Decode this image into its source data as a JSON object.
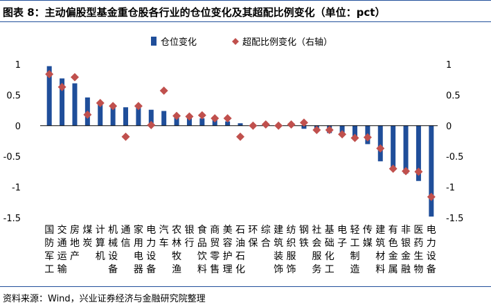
{
  "header": {
    "title": "图表 8：主动偏股型基金重仓股各行业的仓位变化及其超配比例变化（单位：pct）"
  },
  "footer": {
    "source": "资料来源：Wind，兴业证券经济与金融研究院整理"
  },
  "colors": {
    "bar": "#1f4e9a",
    "marker": "#c0504d",
    "rule": "#1f4e9a"
  },
  "chart_data": {
    "type": "bar",
    "categories": [
      "国防军工",
      "交通运输",
      "房地产",
      "煤炭",
      "计算机",
      "机械设备",
      "通信",
      "家用电器",
      "电力设备",
      "汽车",
      "农林牧渔",
      "银行",
      "食品饮料",
      "商贸零售",
      "美容护理",
      "石油石化",
      "环保",
      "综合",
      "建筑装饰",
      "纺织服饰",
      "钢铁",
      "社会服务",
      "基础化工",
      "电子",
      "轻工制造",
      "传媒",
      "建筑材料",
      "有色金属",
      "非银金融",
      "医药生物",
      "电力设备"
    ],
    "series": [
      {
        "name": "仓位变化",
        "kind": "bar",
        "axis": "left",
        "values": [
          0.97,
          0.77,
          0.69,
          0.46,
          0.38,
          0.33,
          0.3,
          0.29,
          0.26,
          0.24,
          0.17,
          0.14,
          0.12,
          0.1,
          0.07,
          0.04,
          0.02,
          0.01,
          0.01,
          -0.01,
          -0.05,
          -0.08,
          -0.12,
          -0.15,
          -0.18,
          -0.3,
          -0.58,
          -0.7,
          -0.78,
          -0.9,
          -1.48
        ]
      },
      {
        "name": "超配比例变化（右轴）",
        "kind": "marker",
        "axis": "right",
        "values": [
          0.84,
          0.63,
          0.79,
          0.18,
          0.37,
          0.32,
          -0.18,
          0.32,
          0.01,
          0.57,
          0.16,
          0.15,
          0.17,
          0.12,
          0.12,
          -0.18,
          0.0,
          0.02,
          0.0,
          0.02,
          0.05,
          -0.07,
          -0.07,
          -0.14,
          -0.2,
          -0.19,
          -0.37,
          -0.7,
          -0.74,
          -0.75,
          -1.16
        ]
      }
    ],
    "ylim": [
      -1.5,
      1
    ],
    "y2lim": [
      -1.5,
      1
    ],
    "yticks": [
      "1",
      "0.5",
      "0",
      "-0.5",
      "-1",
      "-1.5"
    ],
    "y2ticks": [
      "1",
      "0.5",
      "0",
      "-0.5",
      "-1",
      "-1.5"
    ],
    "legend_position": "top-center",
    "grid": false
  }
}
